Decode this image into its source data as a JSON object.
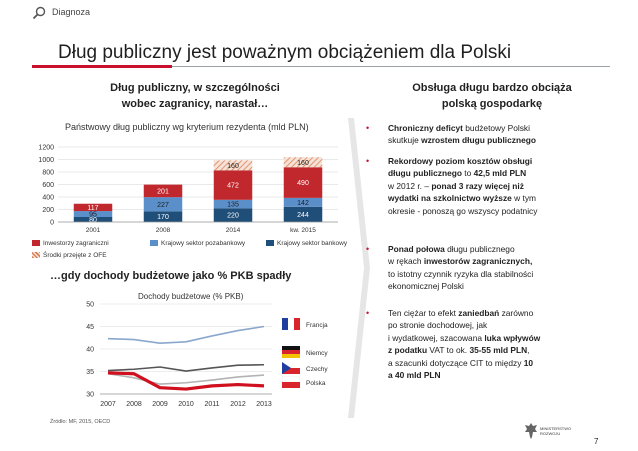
{
  "header": {
    "section_label": "Diagnoza",
    "title": "Dług publiczny jest poważnym obciążeniem dla Polski"
  },
  "left_panel": {
    "heading_line1": "Dług publiczny, w szczególności",
    "heading_line2": "wobec zagranicy, narastał…",
    "source": "Źródło: MF, 2015, OECD"
  },
  "right_panel": {
    "heading_line1": "Obsługa długu bardzo obciąża",
    "heading_line2": "polską gospodarkę",
    "bullets": [
      {
        "lines": [
          [
            {
              "t": "Chroniczny deficyt",
              "b": true
            },
            {
              "t": " budżetowy Polski",
              "b": false
            }
          ],
          [
            {
              "t": "skutkuje ",
              "b": false
            },
            {
              "t": "wzrostem długu publicznego",
              "b": true
            }
          ]
        ]
      },
      {
        "lines": [
          [
            {
              "t": "Rekordowy poziom kosztów obsługi",
              "b": true
            }
          ],
          [
            {
              "t": "długu publicznego",
              "b": true
            },
            {
              "t": " to ",
              "b": false
            },
            {
              "t": "42,5 mld PLN",
              "b": true
            }
          ],
          [
            {
              "t": "w 2012 r. –  ",
              "b": false
            },
            {
              "t": "ponad 3 razy więcej niż",
              "b": true
            }
          ],
          [
            {
              "t": "wydatki na szkolnictwo wyższe",
              "b": true
            },
            {
              "t": " w tym",
              "b": false
            }
          ],
          [
            {
              "t": "okresie - ponoszą go wszyscy podatnicy",
              "b": false
            }
          ]
        ]
      },
      {
        "lines": [
          [
            {
              "t": "Ponad połowa",
              "b": true
            },
            {
              "t": " długu publicznego",
              "b": false
            }
          ],
          [
            {
              "t": "w rękach ",
              "b": false
            },
            {
              "t": "inwestorów zagranicznych,",
              "b": true
            }
          ],
          [
            {
              "t": "to istotny czynnik ryzyka dla stabilności",
              "b": false
            }
          ],
          [
            {
              "t": "ekonomicznej Polski",
              "b": false
            }
          ]
        ]
      },
      {
        "lines": [
          [
            {
              "t": "Ten ciężar to efekt ",
              "b": false
            },
            {
              "t": "zaniedbań",
              "b": true
            },
            {
              "t": " zarówno",
              "b": false
            }
          ],
          [
            {
              "t": "po stronie dochodowej, jak",
              "b": false
            }
          ],
          [
            {
              "t": "i wydatkowej, szacowana ",
              "b": false
            },
            {
              "t": "luka wpływów",
              "b": true
            }
          ],
          [
            {
              "t": "z podatku",
              "b": true
            },
            {
              "t": " VAT to ok. ",
              "b": false
            },
            {
              "t": "35-55 mld PLN",
              "b": true
            },
            {
              "t": ",",
              "b": false
            }
          ],
          [
            {
              "t": "a szacunki dotyczące CIT to między ",
              "b": false
            },
            {
              "t": "10",
              "b": true
            }
          ],
          [
            {
              "t": "a 40 mld PLN",
              "b": true
            }
          ]
        ]
      }
    ]
  },
  "footer": {
    "ministry_line1": "MINISTERSTWO",
    "ministry_line2": "ROZWOJU",
    "page_number": "7"
  },
  "colors": {
    "accent_red": "#c8102e",
    "foreign": "#c0282d",
    "pozabankowy": "#5b8fc9",
    "bankowy": "#1f4e79",
    "ofe_hatch": "#e0a084"
  },
  "chart_data": [
    {
      "type": "bar",
      "stacked": true,
      "title": "Państwowy dług publiczny wg kryterium rezydenta (mld PLN)",
      "categories": [
        "2001",
        "2008",
        "2014",
        "kw. 2015"
      ],
      "ylim": [
        0,
        1200
      ],
      "yticks": [
        0,
        200,
        400,
        600,
        800,
        1000,
        1200
      ],
      "series": [
        {
          "name": "Krajowy sektor bankowy",
          "values": [
            80,
            170,
            220,
            244
          ]
        },
        {
          "name": "Krajowy sektor pozabankowy",
          "values": [
            95,
            227,
            135,
            142
          ]
        },
        {
          "name": "Inwestorzy zagraniczni",
          "values": [
            117,
            201,
            472,
            490
          ]
        },
        {
          "name": "Środki przejęte z OFE",
          "values": [
            null,
            null,
            160,
            160
          ]
        }
      ],
      "legend": "bottom",
      "grid": true
    },
    {
      "type": "line",
      "heading": "…gdy dochody budżetowe jako % PKB spadły",
      "title": "Dochody budżetowe (% PKB)",
      "x": [
        2007,
        2008,
        2009,
        2010,
        2011,
        2012,
        2013
      ],
      "ylim": [
        30,
        50
      ],
      "yticks": [
        30,
        35,
        40,
        45,
        50
      ],
      "series": [
        {
          "name": "Francja",
          "values": [
            42.3,
            42.1,
            41.3,
            41.6,
            42.9,
            44.1,
            45.0
          ]
        },
        {
          "name": "Niemcy",
          "values": [
            35.2,
            35.5,
            36.0,
            35.1,
            35.8,
            36.4,
            36.5
          ]
        },
        {
          "name": "Czechy",
          "values": [
            34.5,
            33.6,
            32.2,
            32.5,
            33.1,
            33.8,
            34.2
          ]
        },
        {
          "name": "Polska",
          "values": [
            34.7,
            34.5,
            31.4,
            31.1,
            31.8,
            32.1,
            31.8
          ]
        }
      ],
      "grid": true,
      "legend": "right"
    }
  ]
}
